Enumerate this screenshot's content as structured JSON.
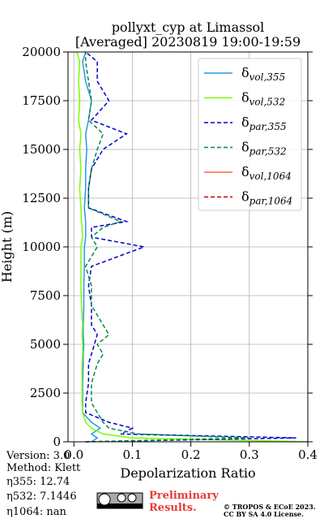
{
  "chart_data": {
    "type": "line",
    "title": [
      "pollyxt_cyp at Limassol",
      "[Averaged] 20230819 19:00-19:59"
    ],
    "x_label": "Depolarization Ratio",
    "y_label": "Height (m)",
    "xlim": [
      -0.01,
      0.4
    ],
    "ylim": [
      0,
      20000
    ],
    "xticks": [
      {
        "value": 0,
        "label": "0.0"
      },
      0.1,
      0.2,
      0.3,
      0.4
    ],
    "yticks": [
      0,
      2500,
      5000,
      7500,
      10000,
      12500,
      15000,
      17500,
      20000
    ],
    "grid": true,
    "legend": "upper right",
    "y": [
      0,
      200,
      400,
      700,
      1000,
      1500,
      2000,
      3000,
      4000,
      4500,
      5000,
      5500,
      6000,
      7000,
      8000,
      9000,
      10000,
      10500,
      11000,
      11300,
      12000,
      13000,
      14000,
      15000,
      15800,
      16500,
      17500,
      18500,
      19500,
      20000
    ],
    "series": [
      {
        "name": "δvol,355",
        "color": "#2a96e8",
        "dash": false,
        "values": [
          0.03,
          0.04,
          0.03,
          0.045,
          0.03,
          0.015,
          0.015,
          0.015,
          0.016,
          0.016,
          0.017,
          0.016,
          0.016,
          0.017,
          0.017,
          0.018,
          0.018,
          0.02,
          0.02,
          0.02,
          0.018,
          0.02,
          0.02,
          0.022,
          0.02,
          0.025,
          0.03,
          0.02,
          0.015,
          0.02
        ]
      },
      {
        "name": "δvol,532",
        "color": "#7cfc00",
        "dash": false,
        "values": [
          0.4,
          0.1,
          0.05,
          0.03,
          0.02,
          0.015,
          0.014,
          0.014,
          0.014,
          0.015,
          0.015,
          0.014,
          0.015,
          0.013,
          0.012,
          0.012,
          0.012,
          0.015,
          0.014,
          0.013,
          0.012,
          0.01,
          0.012,
          0.01,
          0.012,
          0.008,
          0.01,
          0.008,
          0.01,
          0.005
        ]
      },
      {
        "name": "δpar,355",
        "color": "#0000cd",
        "dash": true,
        "values": [
          0.02,
          0.38,
          0.08,
          0.1,
          0.06,
          0.02,
          0.02,
          0.025,
          0.025,
          0.03,
          0.035,
          0.04,
          0.03,
          0.03,
          0.025,
          0.03,
          0.12,
          0.03,
          0.03,
          0.09,
          0.025,
          0.025,
          0.03,
          0.05,
          0.09,
          0.03,
          0.06,
          0.04,
          0.04,
          0.02
        ]
      },
      {
        "name": "δpar,532",
        "color": "#008b45",
        "dash": true,
        "values": [
          0.02,
          0.3,
          0.11,
          0.06,
          0.05,
          0.04,
          0.03,
          0.03,
          0.04,
          0.05,
          0.04,
          0.06,
          0.05,
          0.03,
          0.03,
          0.02,
          0.04,
          0.03,
          0.05,
          0.08,
          0.025,
          0.025,
          0.03,
          0.04,
          0.05,
          0.025,
          0.03,
          0.025,
          0.02,
          0.02
        ]
      },
      {
        "name": "δvol,1064",
        "color": "#ff6347",
        "dash": false,
        "values": [
          null,
          null,
          null,
          null,
          null,
          null,
          null,
          null,
          null,
          null,
          null,
          null,
          null,
          null,
          null,
          null,
          null,
          null,
          null,
          null,
          null,
          null,
          null,
          null,
          null,
          null,
          null,
          null,
          null,
          null
        ]
      },
      {
        "name": "δpar,1064",
        "color": "#cc0000",
        "dash": true,
        "values": [
          null,
          null,
          null,
          null,
          null,
          null,
          null,
          null,
          null,
          null,
          null,
          null,
          null,
          null,
          null,
          null,
          null,
          null,
          null,
          null,
          null,
          null,
          null,
          null,
          null,
          null,
          null,
          null,
          null,
          null
        ]
      }
    ]
  },
  "info": [
    "Version: 3.0",
    "Method: Klett",
    "η355:  12.74",
    "η532: 7.1446",
    "η1064:    nan"
  ],
  "badge": "Preliminary Results.",
  "copyright": [
    "© TROPOS & ECoE 2023.",
    "CC BY SA 4.0 License."
  ]
}
